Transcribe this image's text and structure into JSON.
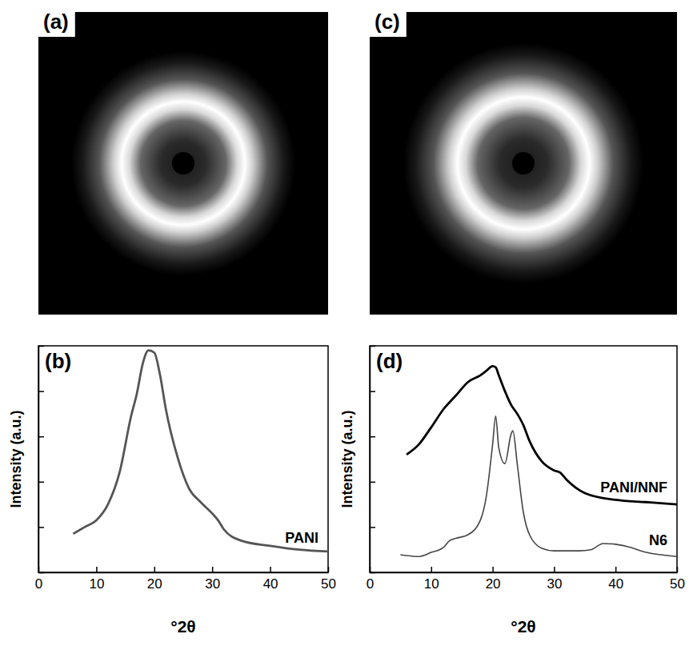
{
  "chart_data": [
    {
      "type": "image",
      "label": "(a)"
    },
    {
      "type": "line",
      "label": "(b)",
      "x_label": "°2θ",
      "y_label": "Intensity (a.u.)",
      "xlim": [
        0,
        50
      ],
      "xticks": [
        0,
        10,
        20,
        30,
        40,
        50
      ],
      "ylim": [
        0,
        10
      ],
      "yticks": [
        0,
        2,
        4,
        6,
        8,
        10
      ],
      "tick_labels": "x",
      "series": [
        {
          "name": "PANI",
          "color": "#555555",
          "x": [
            6,
            8,
            10,
            12,
            14,
            16,
            17,
            18,
            19,
            20,
            21,
            22,
            24,
            26,
            28,
            30,
            31,
            32,
            35,
            40,
            45,
            50
          ],
          "values": [
            1.7,
            2.0,
            2.3,
            3.0,
            4.4,
            6.9,
            7.9,
            9.2,
            9.8,
            9.7,
            8.7,
            7.2,
            5.1,
            3.7,
            3.1,
            2.6,
            2.3,
            1.9,
            1.4,
            1.17,
            1.0,
            0.92
          ]
        }
      ]
    },
    {
      "type": "image",
      "label": "(c)"
    },
    {
      "type": "line",
      "label": "(d)",
      "x_label": "°2θ",
      "y_label": "Intensity (a.u.)",
      "xlim": [
        0,
        50
      ],
      "xticks": [
        0,
        10,
        20,
        30,
        40,
        50
      ],
      "ylim": [
        0,
        10
      ],
      "yticks": [
        0,
        2,
        4,
        6,
        8,
        10
      ],
      "tick_labels": "x",
      "series": [
        {
          "name": "PANI/NNF",
          "color": "#000000",
          "x": [
            6,
            8,
            10,
            12,
            14,
            16,
            18,
            19,
            20,
            20.5,
            21,
            22,
            23,
            24,
            25,
            26,
            28,
            30,
            31,
            32,
            35,
            40,
            45,
            50
          ],
          "values": [
            5.2,
            5.65,
            6.4,
            7.2,
            7.8,
            8.4,
            8.7,
            8.9,
            9.1,
            9.05,
            8.7,
            8.0,
            7.4,
            7.0,
            6.5,
            5.8,
            4.9,
            4.5,
            4.4,
            4.1,
            3.5,
            3.2,
            3.1,
            3.0
          ]
        },
        {
          "name": "N6",
          "color": "#444444",
          "x": [
            5,
            8,
            10,
            12,
            13,
            14,
            16,
            18,
            19,
            20,
            20.5,
            21,
            22,
            23,
            23.3,
            24,
            25,
            26,
            28,
            30,
            34,
            36,
            38,
            40,
            42,
            45,
            50
          ],
          "values": [
            0.78,
            0.7,
            0.88,
            1.1,
            1.4,
            1.5,
            1.66,
            2.3,
            3.4,
            5.65,
            6.9,
            5.5,
            4.8,
            6.1,
            6.25,
            4.8,
            2.65,
            1.66,
            1.06,
            0.95,
            0.95,
            1.0,
            1.27,
            1.24,
            1.13,
            0.88,
            0.7
          ]
        }
      ]
    }
  ]
}
